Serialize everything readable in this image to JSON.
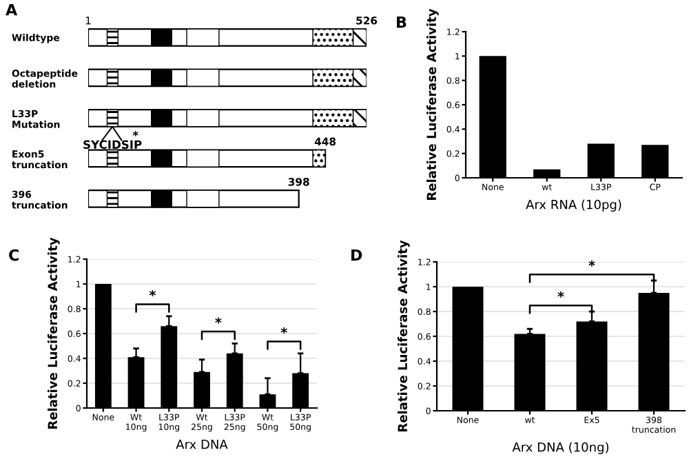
{
  "chart_data": [
    {
      "type": "bar",
      "orientation": "horizontal",
      "title": "A",
      "categories": [
        "Wildtype",
        "Octapeptide\ndeletion",
        "L33P\nMutation",
        "Exon5\ntruncation",
        "396\ntruncation"
      ],
      "values": [
        526,
        526,
        526,
        448,
        398
      ],
      "color": "#ffffff",
      "value_labels": [
        "526",
        null,
        null,
        "448",
        "398"
      ],
      "annotations": [
        "1",
        "SYCIDSIP",
        "*"
      ]
    },
    {
      "type": "bar",
      "title": "B",
      "xlabel": "Arx RNA (10pg)",
      "ylabel": "Relative Luciferase Activity",
      "categories": [
        "None",
        "wt",
        "L33P",
        "CP"
      ],
      "values": [
        1.0,
        0.07,
        0.28,
        0.27
      ],
      "color": "#000000",
      "ylim": [
        0,
        1.2
      ],
      "yticks": [
        0,
        0.2,
        0.4,
        0.6,
        0.8,
        1,
        1.2
      ]
    },
    {
      "type": "bar",
      "title": "C",
      "xlabel": "Arx DNA",
      "ylabel": "Relative Luciferase Activity",
      "categories": [
        "None",
        "Wt\n10ng",
        "L33P\n10ng",
        "Wt\n25ng",
        "L33P\n25ng",
        "Wt\n50ng",
        "L33P\n50ng"
      ],
      "values": [
        1.0,
        0.41,
        0.66,
        0.29,
        0.44,
        0.11,
        0.28
      ],
      "errors": [
        null,
        [
          0.41,
          0.48
        ],
        [
          0.66,
          0.74
        ],
        [
          0.29,
          0.39
        ],
        [
          0.44,
          0.52
        ],
        [
          0.11,
          0.24
        ],
        [
          0.28,
          0.44
        ]
      ],
      "color": "#000000",
      "ylim": [
        0,
        1.2
      ],
      "yticks": [
        0,
        0.2,
        0.4,
        0.6,
        0.8,
        1,
        1.2
      ],
      "grid": "y",
      "annotations": [
        "*",
        "*",
        "*"
      ]
    },
    {
      "type": "bar",
      "title": "D",
      "xlabel": "Arx DNA (10ng)",
      "ylabel": "Relative Luciferase Activity",
      "categories": [
        "None",
        "wt",
        "Ex5",
        "398\ntruncation"
      ],
      "values": [
        1.0,
        0.62,
        0.72,
        0.95
      ],
      "errors": [
        null,
        [
          0.62,
          0.66
        ],
        [
          0.72,
          0.8
        ],
        [
          0.95,
          1.05
        ]
      ],
      "color": "#000000",
      "ylim": [
        0,
        1.2
      ],
      "yticks": [
        0,
        0.2,
        0.4,
        0.6,
        0.8,
        1,
        1.2
      ],
      "grid": "y",
      "annotations": [
        "*",
        "*"
      ]
    }
  ]
}
